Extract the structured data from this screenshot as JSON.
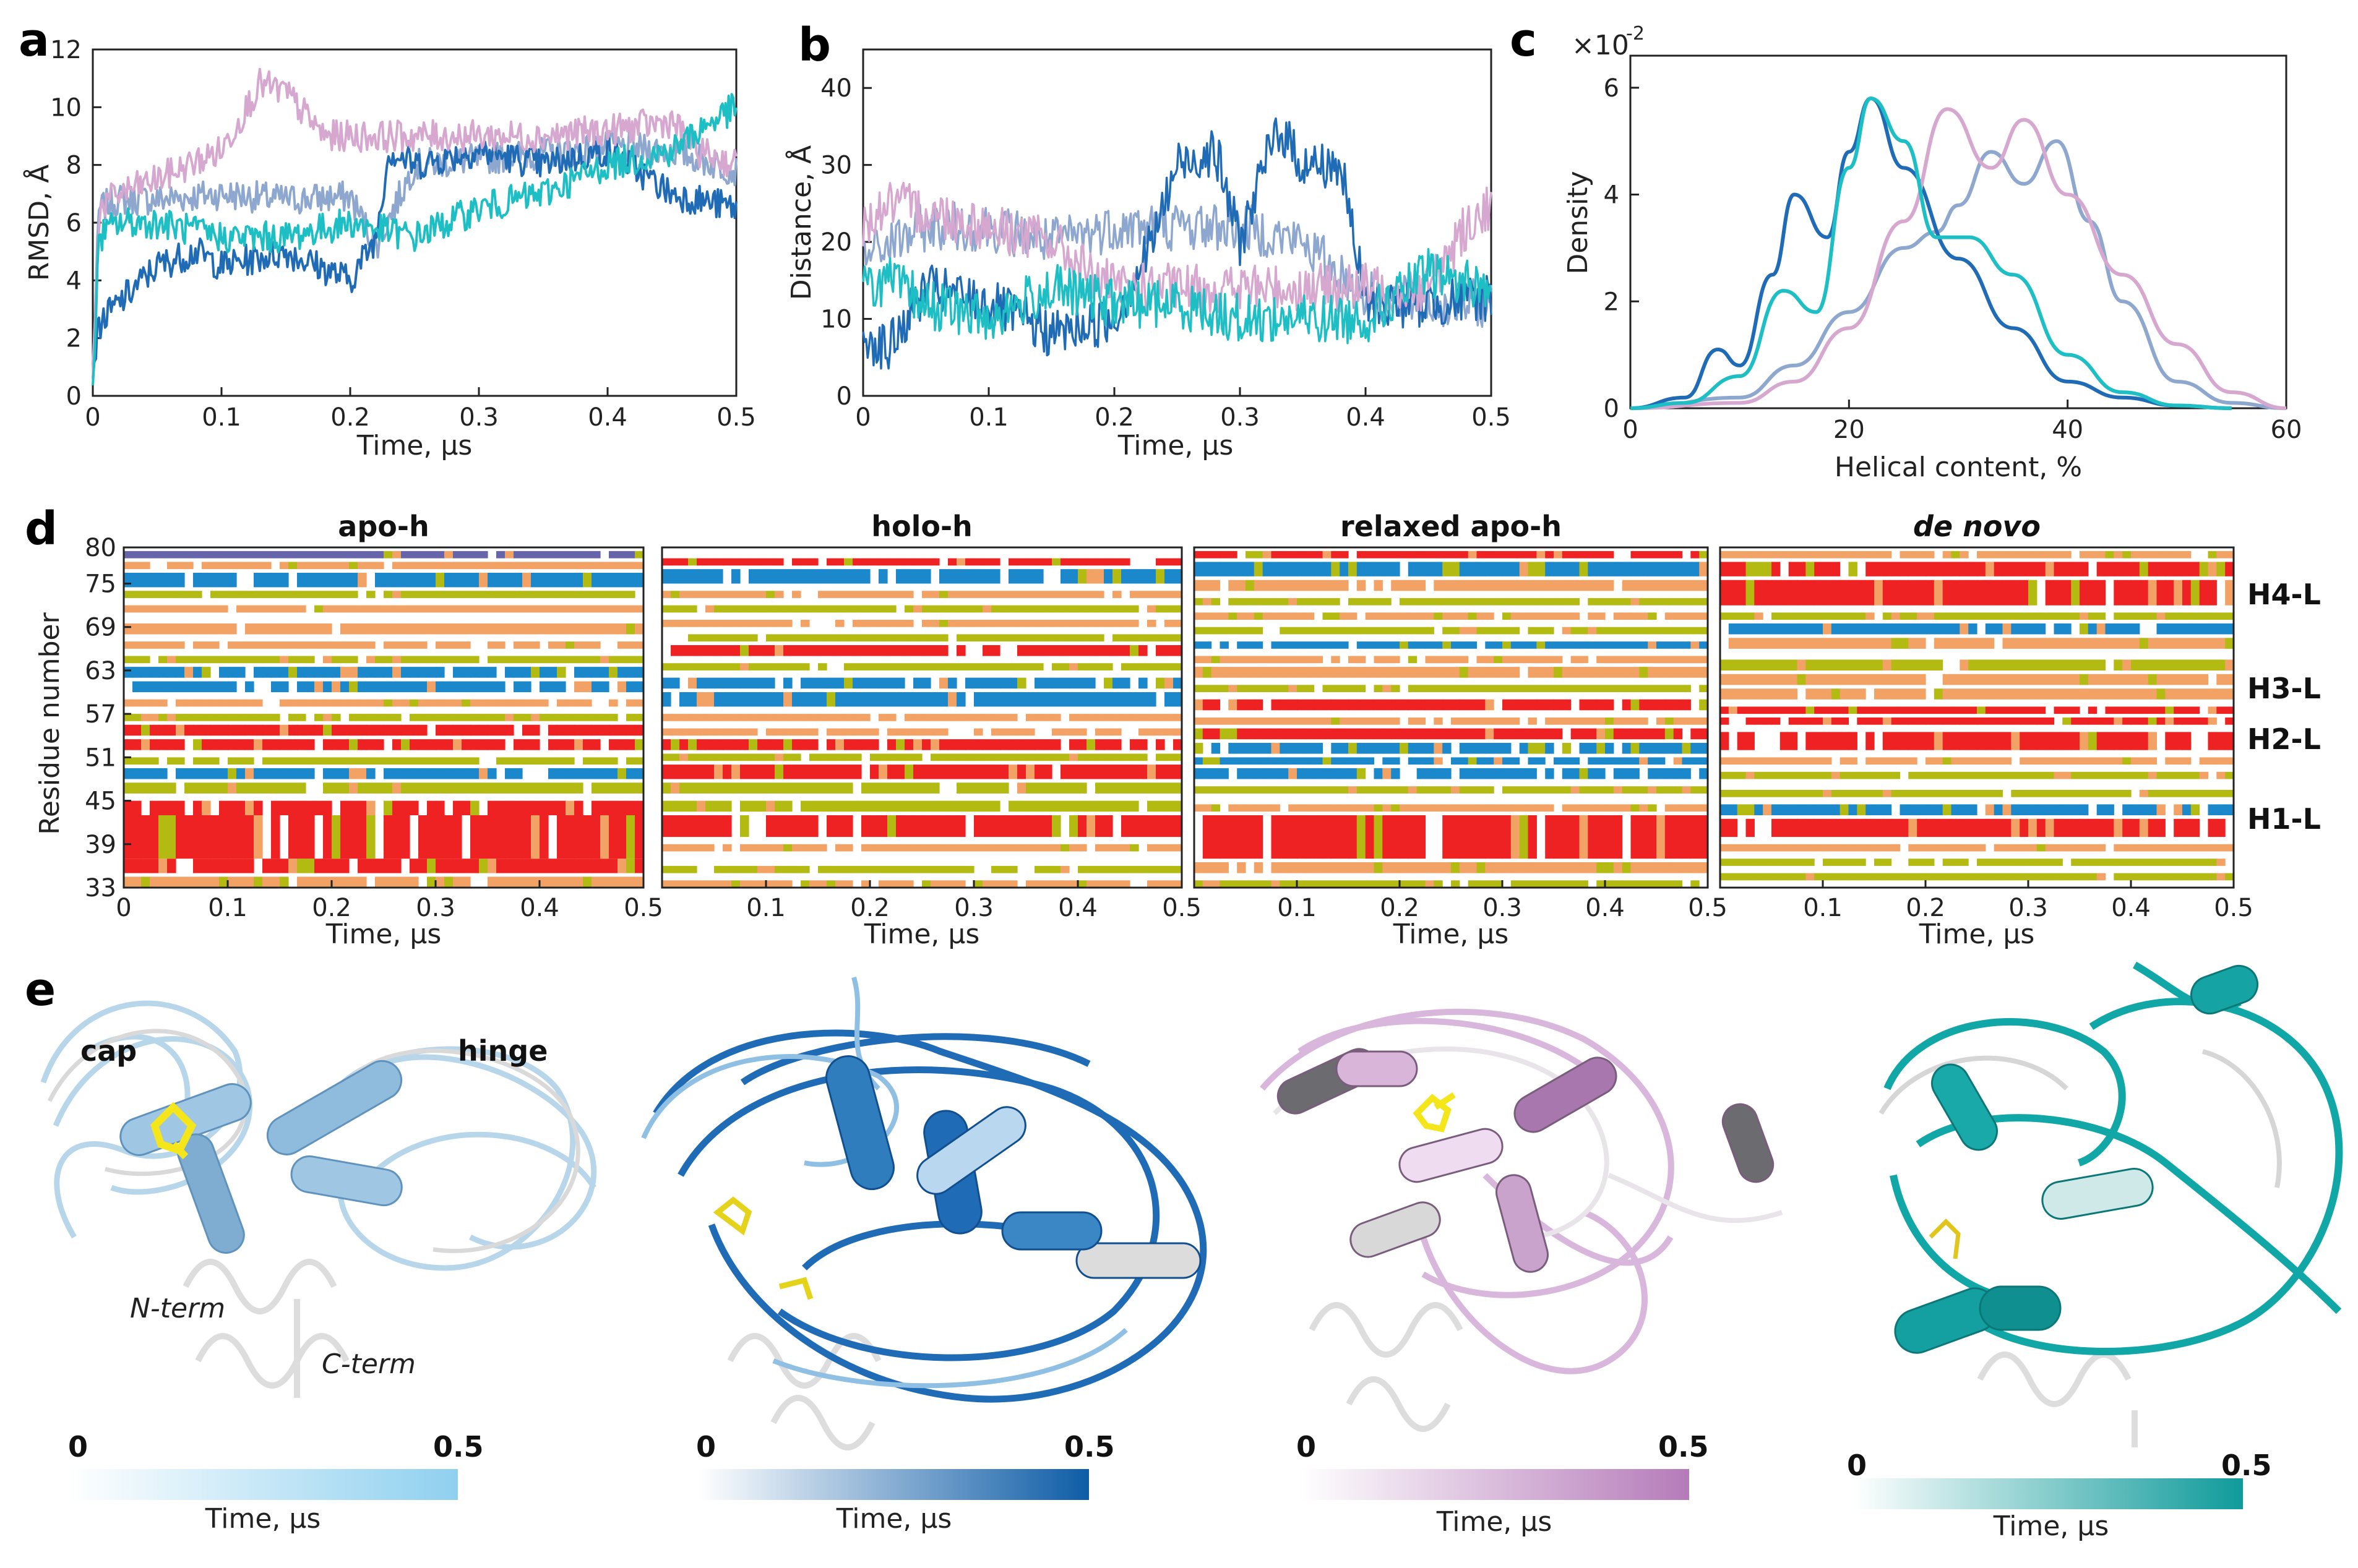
{
  "colors": {
    "apo_h": "#8ea7cf",
    "holo_h": "#1f6bb5",
    "relaxed_apo_h": "#d6a7cf",
    "de_novo": "#1ebfc4",
    "ss_red": "#ee2222",
    "ss_blue": "#1c88cc",
    "ss_orange": "#f3a266",
    "ss_olive": "#b3ba12",
    "ss_purple": "#6664aa"
  },
  "panel_labels": [
    "a",
    "b",
    "c",
    "d",
    "e"
  ],
  "chart_data": [
    {
      "id": "a",
      "type": "line",
      "xlabel": "Time, μs",
      "ylabel": "RMSD, Å",
      "xlim": [
        0,
        0.5
      ],
      "ylim": [
        0,
        12
      ],
      "xticks": [
        "0",
        "0.1",
        "0.2",
        "0.3",
        "0.4",
        "0.5"
      ],
      "yticks": [
        "0",
        "2",
        "4",
        "6",
        "8",
        "10",
        "12"
      ],
      "series": [
        {
          "name": "apo-h",
          "color": "#8ea7cf",
          "x": [
            0,
            0.005,
            0.02,
            0.05,
            0.1,
            0.15,
            0.2,
            0.22,
            0.25,
            0.3,
            0.35,
            0.4,
            0.45,
            0.5
          ],
          "values": [
            1,
            6.5,
            6.8,
            6.8,
            7.0,
            6.8,
            6.9,
            5.2,
            8.0,
            8.2,
            8.4,
            8.6,
            8.5,
            7.8
          ]
        },
        {
          "name": "holo-h",
          "color": "#1f6bb5",
          "x": [
            0,
            0.005,
            0.02,
            0.05,
            0.08,
            0.1,
            0.15,
            0.2,
            0.22,
            0.23,
            0.25,
            0.3,
            0.35,
            0.4,
            0.45,
            0.5
          ],
          "values": [
            1,
            2.5,
            3.2,
            4.5,
            5.0,
            4.5,
            5.0,
            4.0,
            5.5,
            8.5,
            8.0,
            8.5,
            8.0,
            8.5,
            7.0,
            6.5
          ]
        },
        {
          "name": "relaxed apo-h",
          "color": "#d6a7cf",
          "x": [
            0,
            0.005,
            0.02,
            0.05,
            0.1,
            0.13,
            0.15,
            0.18,
            0.2,
            0.25,
            0.3,
            0.35,
            0.4,
            0.45,
            0.47,
            0.5
          ],
          "values": [
            0.5,
            6.5,
            7.0,
            7.5,
            8.5,
            10.8,
            10.5,
            9.0,
            9.0,
            9.0,
            9.0,
            9.0,
            9.2,
            9.5,
            8.5,
            8.0
          ]
        },
        {
          "name": "de novo",
          "color": "#1ebfc4",
          "x": [
            0,
            0.005,
            0.02,
            0.05,
            0.1,
            0.15,
            0.2,
            0.25,
            0.3,
            0.35,
            0.4,
            0.45,
            0.48,
            0.5
          ],
          "values": [
            0.5,
            5.5,
            6.0,
            6.0,
            5.5,
            5.5,
            6.0,
            5.5,
            6.5,
            7.0,
            8.0,
            8.5,
            9.5,
            10.0
          ]
        }
      ]
    },
    {
      "id": "b",
      "type": "line",
      "xlabel": "Time, μs",
      "ylabel": "Distance, Å",
      "xlim": [
        0,
        0.5
      ],
      "ylim": [
        0,
        45
      ],
      "xticks": [
        "0",
        "0.1",
        "0.2",
        "0.3",
        "0.4",
        "0.5"
      ],
      "yticks": [
        "0",
        "10",
        "20",
        "30",
        "40"
      ],
      "series": [
        {
          "name": "apo-h",
          "color": "#8ea7cf",
          "x": [
            0,
            0.05,
            0.1,
            0.15,
            0.2,
            0.25,
            0.3,
            0.35,
            0.4,
            0.45,
            0.5
          ],
          "values": [
            18,
            22,
            22,
            20,
            22,
            22,
            22,
            20,
            13,
            12,
            12
          ]
        },
        {
          "name": "holo-h",
          "color": "#1f6bb5",
          "x": [
            0,
            0.02,
            0.05,
            0.1,
            0.15,
            0.2,
            0.23,
            0.25,
            0.28,
            0.3,
            0.33,
            0.35,
            0.38,
            0.4,
            0.45,
            0.5
          ],
          "values": [
            8,
            6,
            14,
            12,
            8,
            10,
            20,
            30,
            32,
            20,
            35,
            30,
            30,
            12,
            12,
            13
          ]
        },
        {
          "name": "relaxed apo-h",
          "color": "#d6a7cf",
          "x": [
            0,
            0.02,
            0.05,
            0.1,
            0.15,
            0.18,
            0.2,
            0.25,
            0.3,
            0.35,
            0.4,
            0.45,
            0.48,
            0.5
          ],
          "values": [
            22,
            25,
            24,
            22,
            20,
            16,
            14,
            14,
            14,
            14,
            14,
            14,
            22,
            25
          ]
        },
        {
          "name": "de novo",
          "color": "#1ebfc4",
          "x": [
            0,
            0.02,
            0.05,
            0.1,
            0.15,
            0.2,
            0.25,
            0.3,
            0.35,
            0.4,
            0.45,
            0.5
          ],
          "values": [
            14,
            15,
            12,
            10,
            14,
            12,
            12,
            10,
            10,
            10,
            16,
            14
          ]
        }
      ]
    },
    {
      "id": "c",
      "type": "line",
      "xlabel": "Helical content, %",
      "ylabel": "Density",
      "scale_label": "×10",
      "scale_exp": "-2",
      "xlim": [
        0,
        60
      ],
      "ylim": [
        0,
        6.6
      ],
      "xticks": [
        "0",
        "20",
        "40",
        "60"
      ],
      "yticks": [
        "0",
        "2",
        "4",
        "6"
      ],
      "series": [
        {
          "name": "apo-h",
          "color": "#8ea7cf",
          "x": [
            0,
            10,
            15,
            20,
            25,
            28,
            30,
            33,
            36,
            39,
            42,
            45,
            50,
            55,
            60
          ],
          "values": [
            0,
            0.2,
            0.8,
            1.8,
            3.0,
            3.3,
            3.8,
            4.8,
            4.2,
            5.0,
            3.5,
            2.0,
            0.5,
            0.1,
            0
          ]
        },
        {
          "name": "holo-h",
          "color": "#1f6bb5",
          "x": [
            0,
            5,
            8,
            10,
            13,
            15,
            18,
            20,
            22,
            25,
            30,
            35,
            40,
            45,
            50,
            55
          ],
          "values": [
            0,
            0.2,
            1.1,
            0.8,
            2.5,
            4.0,
            3.2,
            4.8,
            5.8,
            4.5,
            2.8,
            1.5,
            0.5,
            0.2,
            0.05,
            0
          ]
        },
        {
          "name": "relaxed apo-h",
          "color": "#d6a7cf",
          "x": [
            0,
            10,
            15,
            20,
            25,
            29,
            33,
            36,
            40,
            45,
            50,
            55,
            60
          ],
          "values": [
            0,
            0.1,
            0.5,
            1.5,
            3.5,
            5.6,
            4.5,
            5.4,
            4.0,
            2.5,
            1.2,
            0.3,
            0
          ]
        },
        {
          "name": "de novo",
          "color": "#1ebfc4",
          "x": [
            0,
            5,
            10,
            14,
            17,
            20,
            22,
            25,
            28,
            31,
            35,
            40,
            45,
            50,
            55
          ],
          "values": [
            0,
            0.1,
            0.6,
            2.2,
            1.8,
            4.5,
            5.8,
            5.0,
            3.2,
            3.2,
            2.5,
            1.0,
            0.3,
            0.05,
            0
          ]
        }
      ]
    },
    {
      "id": "d",
      "type": "heatmap",
      "xlabel": "Time, μs",
      "ylabel": "Residue number",
      "xlim": [
        0,
        0.5
      ],
      "ylim": [
        33,
        80
      ],
      "xticks": [
        "0",
        "0.1",
        "0.2",
        "0.3",
        "0.4",
        "0.5"
      ],
      "xticks_inner": [
        "0.1",
        "0.2",
        "0.3",
        "0.4",
        "0.5"
      ],
      "yticks": [
        "80",
        "75",
        "69",
        "63",
        "57",
        "51",
        "45",
        "39",
        "33"
      ],
      "helix_labels": [
        "H4-L",
        "H3-L",
        "H2-L",
        "H1-L"
      ],
      "helix_positions": [
        73.5,
        60.5,
        53.5,
        42.5
      ],
      "panels": [
        {
          "title": "apo-h",
          "italic": false,
          "bands": [
            [
              33,
              34.5,
              "orange"
            ],
            [
              35,
              37,
              "red"
            ],
            [
              37,
              43,
              "red"
            ],
            [
              43,
              45,
              "red"
            ],
            [
              46,
              47.5,
              "olive"
            ],
            [
              48,
              49.5,
              "blue"
            ],
            [
              50,
              51,
              "olive"
            ],
            [
              52,
              53.5,
              "red"
            ],
            [
              54,
              55.5,
              "red"
            ],
            [
              56,
              57,
              "olive"
            ],
            [
              58,
              59,
              "orange"
            ],
            [
              60,
              61.5,
              "blue"
            ],
            [
              62,
              63.5,
              "blue"
            ],
            [
              64,
              65,
              "olive"
            ],
            [
              66,
              67,
              "orange"
            ],
            [
              68,
              69.5,
              "orange"
            ],
            [
              71,
              72,
              "orange"
            ],
            [
              73,
              74,
              "olive"
            ],
            [
              74.5,
              76.5,
              "blue"
            ],
            [
              77,
              78,
              "orange"
            ],
            [
              78.5,
              79.5,
              "purple"
            ]
          ]
        },
        {
          "title": "holo-h",
          "italic": false,
          "bands": [
            [
              33,
              34,
              "orange"
            ],
            [
              35,
              36,
              "olive"
            ],
            [
              38,
              39,
              "orange"
            ],
            [
              40,
              43,
              "red"
            ],
            [
              43.5,
              45,
              "olive"
            ],
            [
              46,
              47.5,
              "olive"
            ],
            [
              48,
              50,
              "red"
            ],
            [
              50.5,
              51.5,
              "olive"
            ],
            [
              52,
              53.5,
              "red"
            ],
            [
              54,
              55,
              "orange"
            ],
            [
              56,
              57,
              "orange"
            ],
            [
              58,
              60,
              "blue"
            ],
            [
              60.5,
              62,
              "blue"
            ],
            [
              63,
              64,
              "olive"
            ],
            [
              65,
              66.5,
              "red"
            ],
            [
              67,
              68,
              "olive"
            ],
            [
              69,
              70,
              "orange"
            ],
            [
              71,
              72,
              "olive"
            ],
            [
              73,
              74,
              "orange"
            ],
            [
              75,
              77,
              "blue"
            ],
            [
              77.5,
              78.5,
              "red"
            ]
          ]
        },
        {
          "title": "relaxed apo-h",
          "italic": false,
          "bands": [
            [
              33,
              34,
              "olive"
            ],
            [
              35,
              36.5,
              "orange"
            ],
            [
              37,
              43,
              "red"
            ],
            [
              43.5,
              44.5,
              "orange"
            ],
            [
              46,
              47,
              "olive"
            ],
            [
              48,
              49.5,
              "blue"
            ],
            [
              50,
              51,
              "blue"
            ],
            [
              51.5,
              53,
              "blue"
            ],
            [
              53.5,
              55,
              "red"
            ],
            [
              55.5,
              56.5,
              "orange"
            ],
            [
              57.5,
              59,
              "red"
            ],
            [
              60,
              61,
              "olive"
            ],
            [
              62,
              63.5,
              "orange"
            ],
            [
              64,
              65,
              "orange"
            ],
            [
              66,
              67,
              "blue"
            ],
            [
              68,
              69,
              "olive"
            ],
            [
              70,
              71,
              "orange"
            ],
            [
              72,
              73,
              "olive"
            ],
            [
              74,
              75.5,
              "orange"
            ],
            [
              76,
              78,
              "blue"
            ],
            [
              78.5,
              79.5,
              "red"
            ]
          ]
        },
        {
          "title": "de novo",
          "italic": true,
          "bands": [
            [
              34,
              35,
              "olive"
            ],
            [
              36,
              37,
              "olive"
            ],
            [
              38,
              39,
              "orange"
            ],
            [
              40,
              42.5,
              "red"
            ],
            [
              43,
              44.5,
              "blue"
            ],
            [
              45.5,
              46.5,
              "olive"
            ],
            [
              48,
              49,
              "olive"
            ],
            [
              50,
              51,
              "orange"
            ],
            [
              52,
              54.5,
              "red"
            ],
            [
              55.5,
              56.5,
              "red"
            ],
            [
              57,
              58,
              "red"
            ],
            [
              59,
              60.5,
              "orange"
            ],
            [
              61,
              62.5,
              "orange"
            ],
            [
              63,
              64.5,
              "olive"
            ],
            [
              66,
              67.5,
              "orange"
            ],
            [
              68,
              69.5,
              "blue"
            ],
            [
              70,
              71,
              "olive"
            ],
            [
              72,
              75.5,
              "red"
            ],
            [
              76,
              78,
              "red"
            ],
            [
              78.5,
              79.5,
              "orange"
            ]
          ]
        }
      ]
    }
  ],
  "panel_e": {
    "structures": [
      {
        "name": "apo-h",
        "labels": [
          "cap",
          "hinge"
        ],
        "italic_labels": [
          "N-term",
          "C-term"
        ],
        "scale_min": "0",
        "scale_max": "0.5",
        "scale_label": "Time, μs",
        "grad_from": "#ffffff",
        "grad_to": "#8fd0ef",
        "tube": "#9fc6e2",
        "tube_dark": "#5f93bd"
      },
      {
        "name": "holo-h",
        "labels": [],
        "italic_labels": [],
        "scale_min": "0",
        "scale_max": "0.5",
        "scale_label": "Time, μs",
        "grad_from": "#ffffff",
        "grad_to": "#0e5ca6",
        "tube": "#2f7dbd",
        "tube_dark": "#114f8f"
      },
      {
        "name": "relaxed apo-h",
        "labels": [],
        "italic_labels": [],
        "scale_min": "0",
        "scale_max": "0.5",
        "scale_label": "Time, μs",
        "grad_from": "#ffffff",
        "grad_to": "#b57bb9",
        "tube": "#d8b5d9",
        "tube_dark": "#8d6b91"
      },
      {
        "name": "de novo",
        "labels": [],
        "italic_labels": [],
        "scale_min": "0",
        "scale_max": "0.5",
        "scale_label": "Time, μs",
        "grad_from": "#ffffff",
        "grad_to": "#0f9a9a",
        "tube": "#16a3a3",
        "tube_dark": "#0b7777"
      }
    ]
  }
}
